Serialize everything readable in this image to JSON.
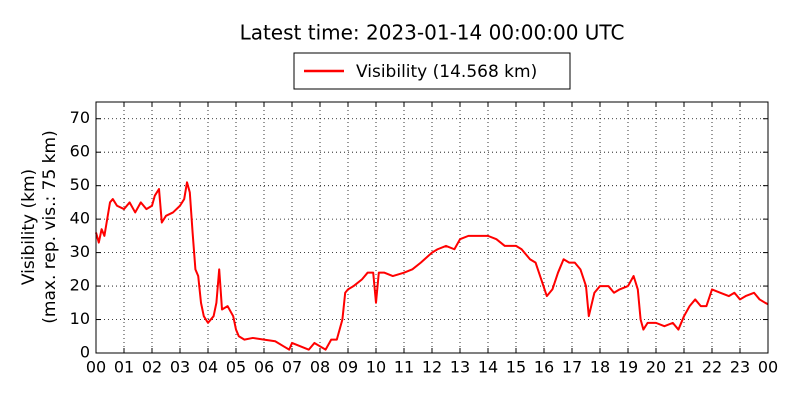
{
  "chart_data": {
    "type": "line",
    "title": "Latest time: 2023-01-14 00:00:00 UTC",
    "y_label": [
      "Visibility (km)",
      "(max. rep. vis.: 75 km)"
    ],
    "series": [
      {
        "name": "Visibility (14.568 km)",
        "color": "#ff0000",
        "x": [
          0.0,
          0.1,
          0.2,
          0.3,
          0.4,
          0.5,
          0.6,
          0.75,
          1.0,
          1.2,
          1.4,
          1.6,
          1.8,
          2.0,
          2.1,
          2.25,
          2.35,
          2.5,
          2.75,
          3.0,
          3.15,
          3.25,
          3.35,
          3.45,
          3.55,
          3.65,
          3.75,
          3.85,
          4.0,
          4.2,
          4.3,
          4.4,
          4.5,
          4.7,
          4.9,
          5.0,
          5.1,
          5.3,
          5.6,
          6.0,
          6.4,
          6.7,
          6.9,
          7.0,
          7.3,
          7.6,
          7.8,
          8.0,
          8.2,
          8.4,
          8.6,
          8.8,
          8.9,
          9.0,
          9.2,
          9.5,
          9.7,
          9.9,
          10.0,
          10.1,
          10.3,
          10.6,
          11.0,
          11.3,
          11.6,
          12.0,
          12.2,
          12.5,
          12.8,
          13.0,
          13.3,
          13.6,
          14.0,
          14.3,
          14.6,
          15.0,
          15.2,
          15.5,
          15.7,
          15.9,
          16.1,
          16.3,
          16.5,
          16.7,
          16.9,
          17.1,
          17.3,
          17.5,
          17.6,
          17.8,
          18.0,
          18.3,
          18.5,
          18.7,
          19.0,
          19.2,
          19.35,
          19.45,
          19.55,
          19.7,
          20.0,
          20.3,
          20.6,
          20.8,
          21.0,
          21.2,
          21.4,
          21.6,
          21.8,
          22.0,
          22.3,
          22.6,
          22.8,
          23.0,
          23.2,
          23.5,
          23.7,
          23.9,
          24.0
        ],
        "values": [
          36,
          33,
          37,
          35,
          40,
          45,
          46,
          44,
          43,
          45,
          42,
          45,
          43,
          44,
          47,
          49,
          39,
          41,
          42,
          44,
          46,
          51,
          48,
          36,
          25,
          23,
          15,
          11,
          9,
          11,
          15,
          25,
          13,
          14,
          11,
          7,
          5,
          4,
          4.5,
          4,
          3.5,
          2,
          1,
          3,
          2,
          1,
          3,
          2,
          1,
          4,
          4,
          10,
          18,
          19,
          20,
          22,
          24,
          24,
          15,
          24,
          24,
          23,
          24,
          25,
          27,
          30,
          31,
          32,
          31,
          34,
          35,
          35,
          35,
          34,
          32,
          32,
          31,
          28,
          27,
          22,
          17,
          19,
          24,
          28,
          27,
          27,
          25,
          20,
          11,
          18,
          20,
          20,
          18,
          19,
          20,
          23,
          19,
          10,
          7,
          9,
          9,
          8,
          9,
          7,
          11,
          14,
          16,
          14,
          14,
          19,
          18,
          17,
          18,
          16,
          17,
          18,
          16,
          15,
          14.568
        ]
      }
    ],
    "xlim": [
      0,
      24
    ],
    "xticks": [
      {
        "value": 0,
        "label": "00"
      },
      {
        "value": 1,
        "label": "01"
      },
      {
        "value": 2,
        "label": "02"
      },
      {
        "value": 3,
        "label": "03"
      },
      {
        "value": 4,
        "label": "04"
      },
      {
        "value": 5,
        "label": "05"
      },
      {
        "value": 6,
        "label": "06"
      },
      {
        "value": 7,
        "label": "07"
      },
      {
        "value": 8,
        "label": "08"
      },
      {
        "value": 9,
        "label": "09"
      },
      {
        "value": 10,
        "label": "10"
      },
      {
        "value": 11,
        "label": "11"
      },
      {
        "value": 12,
        "label": "12"
      },
      {
        "value": 13,
        "label": "13"
      },
      {
        "value": 14,
        "label": "14"
      },
      {
        "value": 15,
        "label": "15"
      },
      {
        "value": 16,
        "label": "16"
      },
      {
        "value": 17,
        "label": "17"
      },
      {
        "value": 18,
        "label": "18"
      },
      {
        "value": 19,
        "label": "19"
      },
      {
        "value": 20,
        "label": "20"
      },
      {
        "value": 21,
        "label": "21"
      },
      {
        "value": 22,
        "label": "22"
      },
      {
        "value": 23,
        "label": "23"
      },
      {
        "value": 24,
        "label": "00"
      }
    ],
    "ylim": [
      0,
      75
    ],
    "yticks": [
      0,
      10,
      20,
      30,
      40,
      50,
      60,
      70
    ],
    "grid": true
  }
}
